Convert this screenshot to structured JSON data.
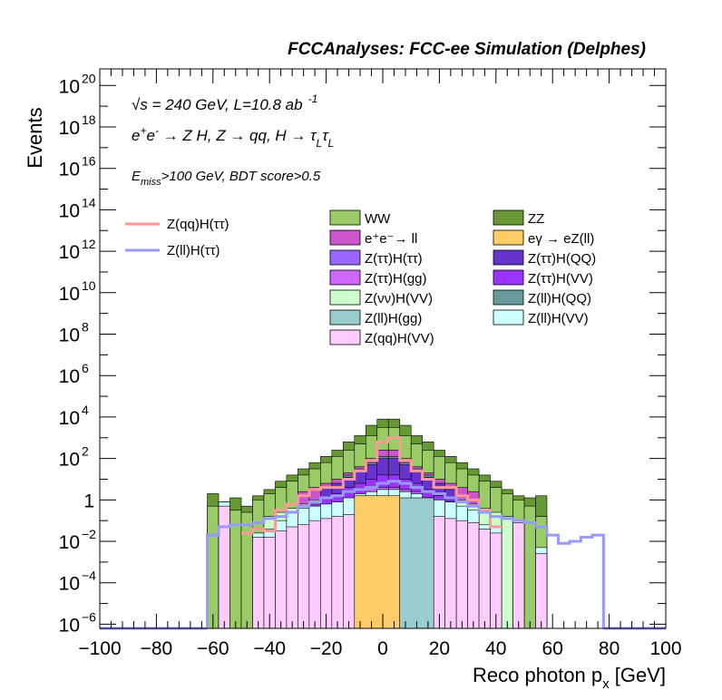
{
  "chart_data": {
    "type": "stacked-histogram",
    "title": "FCCAnalyses: FCC-ee Simulation (Delphes)",
    "xlabel": "Reco photon p_x [GeV]",
    "xlabel_main": "Reco photon p",
    "xlabel_sub": "x",
    "xlabel_unit": " [GeV]",
    "ylabel": "Events",
    "xlim": [
      -100,
      100
    ],
    "ylim_log10": [
      -6.2,
      20.8
    ],
    "log_y": true,
    "grid": false,
    "legend_position": "top-right",
    "x_ticks": [
      {
        "v": -100,
        "label": "−100"
      },
      {
        "v": -80,
        "label": "−80"
      },
      {
        "v": -60,
        "label": "−60"
      },
      {
        "v": -40,
        "label": "−40"
      },
      {
        "v": -20,
        "label": "−20"
      },
      {
        "v": 0,
        "label": "0"
      },
      {
        "v": 20,
        "label": "20"
      },
      {
        "v": 40,
        "label": "40"
      },
      {
        "v": 60,
        "label": "60"
      },
      {
        "v": 80,
        "label": "80"
      },
      {
        "v": 100,
        "label": "100"
      }
    ],
    "y_ticks": [
      {
        "e": -6,
        "base": "10",
        "exp": "−6"
      },
      {
        "e": -4,
        "base": "10",
        "exp": "−4"
      },
      {
        "e": -2,
        "base": "10",
        "exp": "−2"
      },
      {
        "e": 0,
        "base": "1",
        "exp": ""
      },
      {
        "e": 2,
        "base": "10",
        "exp": "2"
      },
      {
        "e": 4,
        "base": "10",
        "exp": "4"
      },
      {
        "e": 6,
        "base": "10",
        "exp": "6"
      },
      {
        "e": 8,
        "base": "10",
        "exp": "8"
      },
      {
        "e": 10,
        "base": "10",
        "exp": "10"
      },
      {
        "e": 12,
        "base": "10",
        "exp": "12"
      },
      {
        "e": 14,
        "base": "10",
        "exp": "14"
      },
      {
        "e": 16,
        "base": "10",
        "exp": "16"
      },
      {
        "e": 18,
        "base": "10",
        "exp": "18"
      },
      {
        "e": 20,
        "base": "10",
        "exp": "20"
      }
    ],
    "annotations": {
      "energy": "√s = 240 GeV, L=10.8 ab",
      "energy_sup": "-1",
      "process_a": "e",
      "process_a_sup1": "+",
      "process_a2": "e",
      "process_a_sup2": "-",
      "process_b": " → Z H, Z  → qq, H  → τ",
      "process_sub1": "L",
      "process_tau2": "τ",
      "process_sub2": "L",
      "cut_a": "E",
      "cut_sub": "miss",
      "cut_b": ">100 GeV, BDT score>0.5"
    },
    "bin_edges": [
      -62,
      -58,
      -54,
      -50,
      -46,
      -42,
      -38,
      -34,
      -30,
      -26,
      -22,
      -18,
      -14,
      -10,
      -6,
      -2,
      2,
      6,
      10,
      14,
      18,
      22,
      26,
      30,
      34,
      38,
      42,
      46,
      50,
      54,
      58,
      62,
      66
    ],
    "stack_layers": [
      {
        "name": "Z(qq)H(VV)",
        "color": "#ffccff",
        "top_log10": [
          null,
          -0.3,
          null,
          null,
          -1.8,
          -1.8,
          -1.5,
          -1.3,
          -1.2,
          -1,
          -0.9,
          -0.8,
          -0.7,
          -0.6,
          -0.5,
          -0.4,
          -0.4,
          -0.5,
          -0.6,
          -0.7,
          -0.8,
          -0.9,
          -1,
          -1.1,
          -1.4,
          -1.6,
          null,
          -1.1,
          null,
          -2.6,
          null,
          null
        ]
      },
      {
        "name": "Z(ll)H(VV)",
        "color": "#ccffff",
        "top_log10": [
          null,
          -0.1,
          null,
          null,
          -1.6,
          -1.4,
          -1.0,
          -0.6,
          -0.4,
          -0.3,
          -0.2,
          -0.1,
          0.1,
          0.3,
          0.4,
          0.5,
          0.5,
          0.4,
          0.3,
          0.1,
          0,
          -0.1,
          -0.3,
          -0.5,
          -1.2,
          -1.3,
          null,
          -1.0,
          null,
          -2.3,
          null,
          null
        ]
      },
      {
        "name": "Z(ll)H(gg)",
        "color": "#99cccc",
        "top_log10": [
          null,
          null,
          null,
          null,
          null,
          -2.1,
          -1.9,
          -1.7,
          -1.5,
          -1.2,
          -1.0,
          -0.8,
          -0.6,
          -0.4,
          -0.2,
          0,
          0,
          -0.3,
          -0.5,
          -0.7,
          -1.0,
          -1.3,
          -1.5,
          -1.8,
          null,
          null,
          null,
          null,
          null,
          null,
          null,
          null
        ]
      },
      {
        "name": "Z(ττ)H(ττ)",
        "color": "#9966ff",
        "top_log10": [
          null,
          -1.2,
          null,
          null,
          null,
          -2.0,
          -1.8,
          -1.7,
          -1.0,
          -0.6,
          -0.4,
          -0.3,
          -0.3,
          0.3,
          0.4,
          0.3,
          0.3,
          0.4,
          0.3,
          -0.2,
          -0.3,
          -0.5,
          -0.7,
          -1.0,
          -2.4,
          null,
          null,
          null,
          null,
          null,
          null,
          null
        ]
      },
      {
        "name": "Z(ττ)H(gg)",
        "color": "#cc66ff",
        "top_log10": [
          null,
          null,
          null,
          null,
          null,
          null,
          null,
          null,
          null,
          null,
          -0.4,
          -0.2,
          0,
          0.3,
          0.6,
          0.6,
          0.6,
          0.5,
          0.4,
          0.1,
          -0.2,
          null,
          null,
          null,
          null,
          null,
          null,
          null,
          null,
          null,
          null,
          null
        ]
      },
      {
        "name": "Z(ττ)H(VV)",
        "color": "#9933ff",
        "top_log10": [
          null,
          null,
          null,
          null,
          null,
          null,
          null,
          null,
          null,
          -0.2,
          0.1,
          0.3,
          0.6,
          0.8,
          1.0,
          1.2,
          1.2,
          1.0,
          0.8,
          0.5,
          0.2,
          -0.1,
          null,
          null,
          null,
          null,
          null,
          null,
          null,
          null,
          null,
          null
        ]
      },
      {
        "name": "Z(ττ)H(QQ)",
        "color": "#6633cc",
        "top_log10": [
          null,
          null,
          null,
          null,
          null,
          null,
          null,
          null,
          null,
          null,
          0.6,
          0.8,
          1.1,
          1.4,
          1.7,
          2.0,
          2.0,
          1.7,
          1.4,
          1.1,
          0.8,
          0.5,
          null,
          null,
          null,
          null,
          null,
          null,
          null,
          null,
          null,
          null
        ]
      },
      {
        "name": "Z(ll)H(QQ)",
        "color": "#669999",
        "top_log10": [
          null,
          null,
          null,
          null,
          null,
          null,
          null,
          null,
          null,
          null,
          null,
          null,
          1.2,
          1.5,
          1.8,
          2.1,
          2.1,
          1.8,
          1.5,
          1.2,
          null,
          null,
          null,
          null,
          null,
          null,
          null,
          null,
          null,
          null,
          null,
          null
        ]
      },
      {
        "name": "Z(νν)H(VV)",
        "color": "#ccffcc",
        "top_log10": [
          null,
          null,
          null,
          null,
          null,
          -0.8,
          -0.6,
          -0.4,
          -0.2,
          0,
          0.2,
          0.4,
          0.7,
          1.0,
          1.3,
          1.6,
          1.6,
          1.3,
          1.0,
          0.7,
          0.4,
          0.2,
          0,
          -0.2,
          -0.4,
          -0.6,
          -0.8,
          null,
          null,
          null,
          null,
          null
        ]
      },
      {
        "name": "e⁺e⁻→ ll",
        "color": "#cc55cc",
        "top_log10": [
          null,
          null,
          null,
          null,
          null,
          null,
          null,
          null,
          0.4,
          0.6,
          0.8,
          1.0,
          1.3,
          1.6,
          2.0,
          2.4,
          2.4,
          2.0,
          1.6,
          1.3,
          1.0,
          0.8,
          0.6,
          0.4,
          null,
          null,
          null,
          null,
          null,
          null,
          null,
          null
        ]
      },
      {
        "name": "eγ → eZ(ll)",
        "color": "#ffcc66",
        "top_log10": [
          null,
          null,
          null,
          null,
          null,
          null,
          null,
          null,
          null,
          null,
          null,
          null,
          null,
          null,
          null,
          null,
          null,
          null,
          null,
          null,
          null,
          null,
          null,
          null,
          null,
          null,
          null,
          null,
          null,
          null,
          null,
          null
        ]
      },
      {
        "name": "WW",
        "color": "#99cc66",
        "top_log10": [
          -0.3,
          -0.1,
          -0.5,
          -0.6,
          0,
          0.3,
          0.6,
          0.9,
          1.2,
          1.5,
          1.8,
          2.1,
          2.4,
          2.7,
          3.1,
          3.5,
          3.5,
          3.1,
          2.7,
          2.4,
          2.1,
          1.8,
          1.5,
          1.2,
          0.9,
          0.6,
          0.3,
          0,
          -0.3,
          -0.8,
          null,
          null
        ]
      },
      {
        "name": "ZZ",
        "color": "#669933",
        "top_log10": [
          0.3,
          -0.1,
          0.1,
          -0.3,
          0.2,
          0.5,
          0.9,
          1.2,
          1.5,
          1.8,
          2.1,
          2.4,
          2.8,
          3.1,
          3.6,
          3.9,
          3.9,
          3.6,
          3.1,
          2.8,
          2.4,
          2.1,
          1.8,
          1.5,
          1.2,
          0.9,
          0.5,
          0.2,
          0.1,
          0.2,
          null,
          null
        ]
      }
    ],
    "special_fills": [
      {
        "name": "eγ → eZ(ll) core",
        "color": "#ffcc66",
        "x0": -10,
        "x1": 6,
        "top_log10": 0.2
      },
      {
        "name": "Z(ll)H(gg) core",
        "color": "#99cccc",
        "x0": 6,
        "x1": 18,
        "top_log10": 0.1
      }
    ],
    "signal_lines": [
      {
        "name": "Z(qq)H(ττ)",
        "color": "#ff9999",
        "edges": [
          -50,
          -46,
          -42,
          -38,
          -34,
          -30,
          -26,
          -22,
          -18,
          -14,
          -10,
          -6,
          -2,
          2,
          6,
          10,
          14,
          18,
          22,
          26,
          30,
          34,
          38,
          42
        ],
        "log10": [
          -1.6,
          -1.4,
          -1.5,
          -0.5,
          -0.2,
          0.2,
          0.5,
          0.6,
          0.6,
          1.0,
          1.4,
          1.9,
          2.8,
          3.0,
          1.9,
          1.4,
          1.0,
          0.6,
          0.6,
          0.2,
          0.0,
          -0.5,
          -1.3
        ]
      },
      {
        "name": "Z(ll)H(ττ)",
        "color": "#9999ff",
        "edges": [
          -62,
          -58,
          -54,
          -50,
          -46,
          -42,
          -38,
          -34,
          -30,
          -26,
          -22,
          -18,
          -14,
          -10,
          -6,
          -2,
          2,
          6,
          10,
          14,
          18,
          22,
          26,
          30,
          34,
          38,
          42,
          46,
          50,
          54,
          58,
          62,
          66,
          70,
          74,
          78
        ],
        "log10": [
          -1.7,
          -1.3,
          -1.2,
          -1.2,
          -1.1,
          -0.9,
          -0.8,
          -0.6,
          -0.3,
          -0.1,
          0.1,
          0.2,
          0.4,
          0.5,
          0.6,
          0.8,
          0.9,
          0.8,
          0.6,
          0.4,
          0.3,
          0.1,
          -0.1,
          -0.3,
          -0.6,
          -0.8,
          -0.9,
          -1.0,
          -1.1,
          -1.3,
          -1.7,
          -2.1,
          -2.0,
          -1.8,
          -1.7
        ],
        "baseline_log10": -6.2
      }
    ],
    "legend": {
      "lines": [
        {
          "label": "Z(qq)H(ττ)",
          "color": "#ff9999"
        },
        {
          "label": "Z(ll)H(ττ)",
          "color": "#9999ff"
        }
      ],
      "boxes": [
        {
          "label": "WW",
          "color": "#99cc66"
        },
        {
          "label": "ZZ",
          "color": "#669933"
        },
        {
          "label": "e⁺e⁻→ ll",
          "color": "#cc55cc"
        },
        {
          "label": "eγ → eZ(ll)",
          "color": "#ffcc66"
        },
        {
          "label": "Z(ττ)H(ττ)",
          "color": "#9966ff"
        },
        {
          "label": "Z(ττ)H(QQ)",
          "color": "#6633cc"
        },
        {
          "label": "Z(ττ)H(gg)",
          "color": "#cc66ff"
        },
        {
          "label": "Z(ττ)H(VV)",
          "color": "#9933ff"
        },
        {
          "label": "Z(νν)H(VV)",
          "color": "#ccffcc"
        },
        {
          "label": "Z(ll)H(QQ)",
          "color": "#669999"
        },
        {
          "label": "Z(ll)H(gg)",
          "color": "#99cccc"
        },
        {
          "label": "Z(ll)H(VV)",
          "color": "#ccffff"
        },
        {
          "label": "Z(qq)H(VV)",
          "color": "#ffccff"
        }
      ]
    }
  }
}
